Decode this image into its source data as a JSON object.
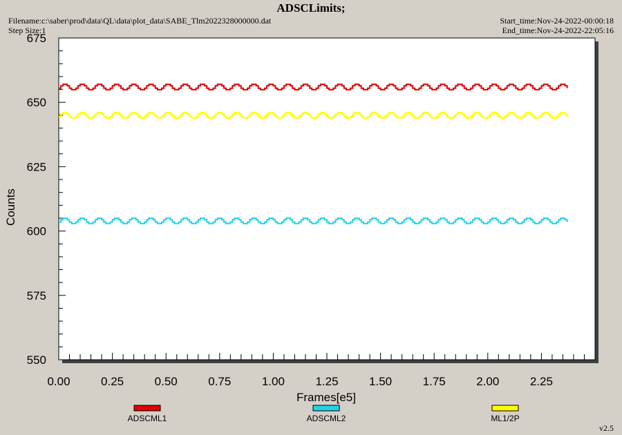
{
  "header": {
    "title": "ADSCLimits;",
    "filename": "Filename:c:\\saber\\prod\\data\\QL\\data\\plot_data\\SABE_Tlm2022328000000.dat",
    "step_size": "Step Size:1",
    "start_time": "Start_time:Nov-24-2022-00:00:18",
    "end_time": "End_time:Nov-24-2022-22:05:16"
  },
  "version": "v2.5",
  "chart_data": {
    "type": "line",
    "title": "ADSCLimits;",
    "xlabel": "Frames[e5]",
    "ylabel": "Counts",
    "xlim": [
      0.0,
      2.5
    ],
    "ylim": [
      550,
      675
    ],
    "x_ticks": [
      "0.00",
      "0.25",
      "0.50",
      "0.75",
      "1.00",
      "1.25",
      "1.50",
      "1.75",
      "2.00",
      "2.25"
    ],
    "y_ticks": [
      "550",
      "575",
      "600",
      "625",
      "650",
      "675"
    ],
    "grid": false,
    "legend_position": "bottom",
    "series": [
      {
        "name": "ADSCML1",
        "color": "#e00000",
        "x_range": [
          0.0,
          2.37
        ],
        "base": 655.5,
        "amplitude": 2.5,
        "period": 0.08
      },
      {
        "name": "ADSCML2",
        "color": "#22d3e8",
        "x_range": [
          0.0,
          2.37
        ],
        "base": 603.5,
        "amplitude": 2.5,
        "period": 0.08
      },
      {
        "name": "ML1/2P",
        "color": "#ffff00",
        "x_range": [
          0.0,
          2.37
        ],
        "base": 644.5,
        "amplitude": 2.5,
        "period": 0.08
      }
    ]
  }
}
